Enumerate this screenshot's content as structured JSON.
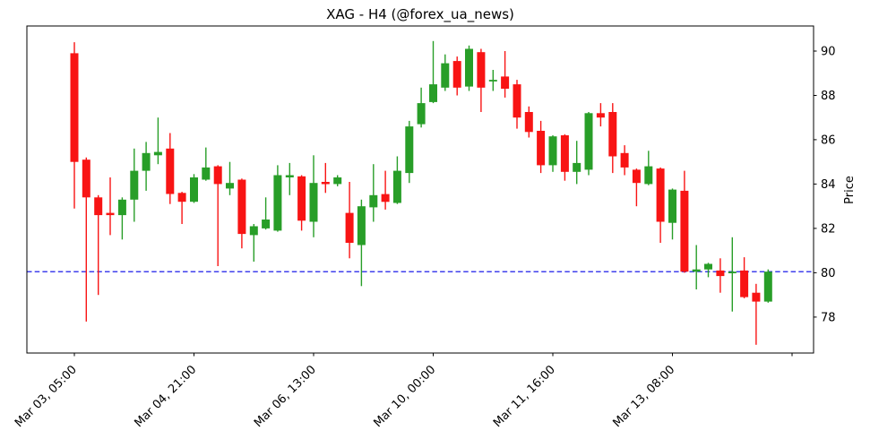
{
  "figure": {
    "title": "XAG - H4 (@forex_ua_news)",
    "background": "#ffffff"
  },
  "chart_data": {
    "type": "candlestick",
    "symbol": "XAG",
    "timeframe": "H4",
    "title": "XAG - H4 (@forex_ua_news)",
    "xlabel": "",
    "ylabel": "Price",
    "grid": false,
    "legend": null,
    "ylim": [
      76.38,
      91.13
    ],
    "yticks": [
      78,
      80,
      82,
      84,
      86,
      88,
      90
    ],
    "xtick_indices": [
      0,
      10,
      20,
      30,
      40,
      50,
      60
    ],
    "xtick_labels": [
      "Mar 03, 05:00",
      "Mar 04, 21:00",
      "Mar 06, 13:00",
      "Mar 10, 00:00",
      "Mar 11, 16:00",
      "Mar 13, 08:00",
      ""
    ],
    "hline": {
      "value": 80.05,
      "style": "dashed",
      "color": "#0000e6"
    },
    "colors": {
      "up": "#289e28",
      "down": "#f81414",
      "hline": "#0000e6",
      "axis": "#000000"
    },
    "ohlc_columns": [
      "open",
      "high",
      "low",
      "close"
    ],
    "ohlc": [
      [
        89.9,
        90.4,
        82.9,
        85.0
      ],
      [
        85.1,
        85.2,
        77.8,
        83.4
      ],
      [
        83.4,
        83.5,
        79.0,
        82.6
      ],
      [
        82.7,
        84.3,
        81.7,
        82.6
      ],
      [
        82.6,
        83.4,
        81.5,
        83.3
      ],
      [
        83.3,
        85.6,
        82.3,
        84.6
      ],
      [
        84.6,
        85.9,
        83.7,
        85.4
      ],
      [
        85.3,
        87.0,
        84.9,
        85.45
      ],
      [
        85.6,
        86.3,
        83.1,
        83.55
      ],
      [
        83.6,
        83.65,
        82.2,
        83.2
      ],
      [
        83.2,
        84.45,
        83.15,
        84.3
      ],
      [
        84.2,
        85.65,
        84.15,
        84.75
      ],
      [
        84.8,
        84.85,
        80.3,
        84.0
      ],
      [
        83.8,
        85.0,
        83.5,
        84.05
      ],
      [
        84.2,
        84.25,
        81.1,
        81.75
      ],
      [
        81.7,
        82.2,
        80.5,
        82.1
      ],
      [
        82.0,
        83.4,
        81.95,
        82.4
      ],
      [
        81.9,
        84.85,
        81.85,
        84.4
      ],
      [
        84.3,
        84.95,
        83.5,
        84.4
      ],
      [
        84.35,
        84.4,
        81.9,
        82.35
      ],
      [
        82.3,
        85.3,
        81.6,
        84.05
      ],
      [
        84.1,
        84.95,
        83.6,
        84.0
      ],
      [
        84.0,
        84.4,
        83.9,
        84.3
      ],
      [
        82.7,
        84.1,
        80.65,
        81.35
      ],
      [
        81.25,
        83.3,
        79.4,
        83.0
      ],
      [
        82.95,
        84.9,
        82.3,
        83.5
      ],
      [
        83.55,
        84.6,
        82.85,
        83.2
      ],
      [
        83.15,
        85.25,
        83.1,
        84.6
      ],
      [
        84.5,
        86.85,
        84.05,
        86.6
      ],
      [
        86.7,
        88.35,
        86.55,
        87.65
      ],
      [
        87.7,
        90.45,
        87.65,
        88.5
      ],
      [
        88.35,
        89.85,
        88.2,
        89.45
      ],
      [
        89.55,
        89.75,
        88.0,
        88.35
      ],
      [
        88.4,
        90.25,
        88.2,
        90.1
      ],
      [
        89.95,
        90.1,
        87.25,
        88.35
      ],
      [
        88.65,
        89.15,
        88.2,
        88.7
      ],
      [
        88.85,
        90.0,
        87.9,
        88.3
      ],
      [
        88.5,
        88.7,
        86.5,
        87.0
      ],
      [
        87.25,
        87.5,
        86.1,
        86.35
      ],
      [
        86.4,
        86.85,
        84.5,
        84.85
      ],
      [
        84.85,
        86.2,
        84.55,
        86.15
      ],
      [
        86.2,
        86.25,
        84.15,
        84.55
      ],
      [
        84.55,
        85.95,
        84.0,
        84.95
      ],
      [
        84.65,
        87.25,
        84.4,
        87.2
      ],
      [
        87.2,
        87.65,
        86.6,
        87.0
      ],
      [
        87.25,
        87.65,
        84.5,
        85.25
      ],
      [
        85.4,
        85.75,
        84.4,
        84.75
      ],
      [
        84.65,
        84.7,
        83.0,
        84.05
      ],
      [
        84.0,
        85.5,
        83.95,
        84.8
      ],
      [
        84.7,
        84.75,
        81.35,
        82.3
      ],
      [
        82.25,
        83.8,
        81.5,
        83.75
      ],
      [
        83.7,
        84.6,
        80.0,
        80.05
      ],
      [
        80.05,
        81.25,
        79.25,
        80.15
      ],
      [
        80.15,
        80.45,
        79.8,
        80.4
      ],
      [
        80.1,
        80.65,
        79.1,
        79.85
      ],
      [
        80.0,
        81.6,
        78.25,
        80.05
      ],
      [
        80.1,
        80.7,
        78.85,
        78.9
      ],
      [
        79.1,
        79.5,
        76.75,
        78.7
      ],
      [
        78.7,
        80.15,
        78.65,
        80.05
      ]
    ]
  }
}
